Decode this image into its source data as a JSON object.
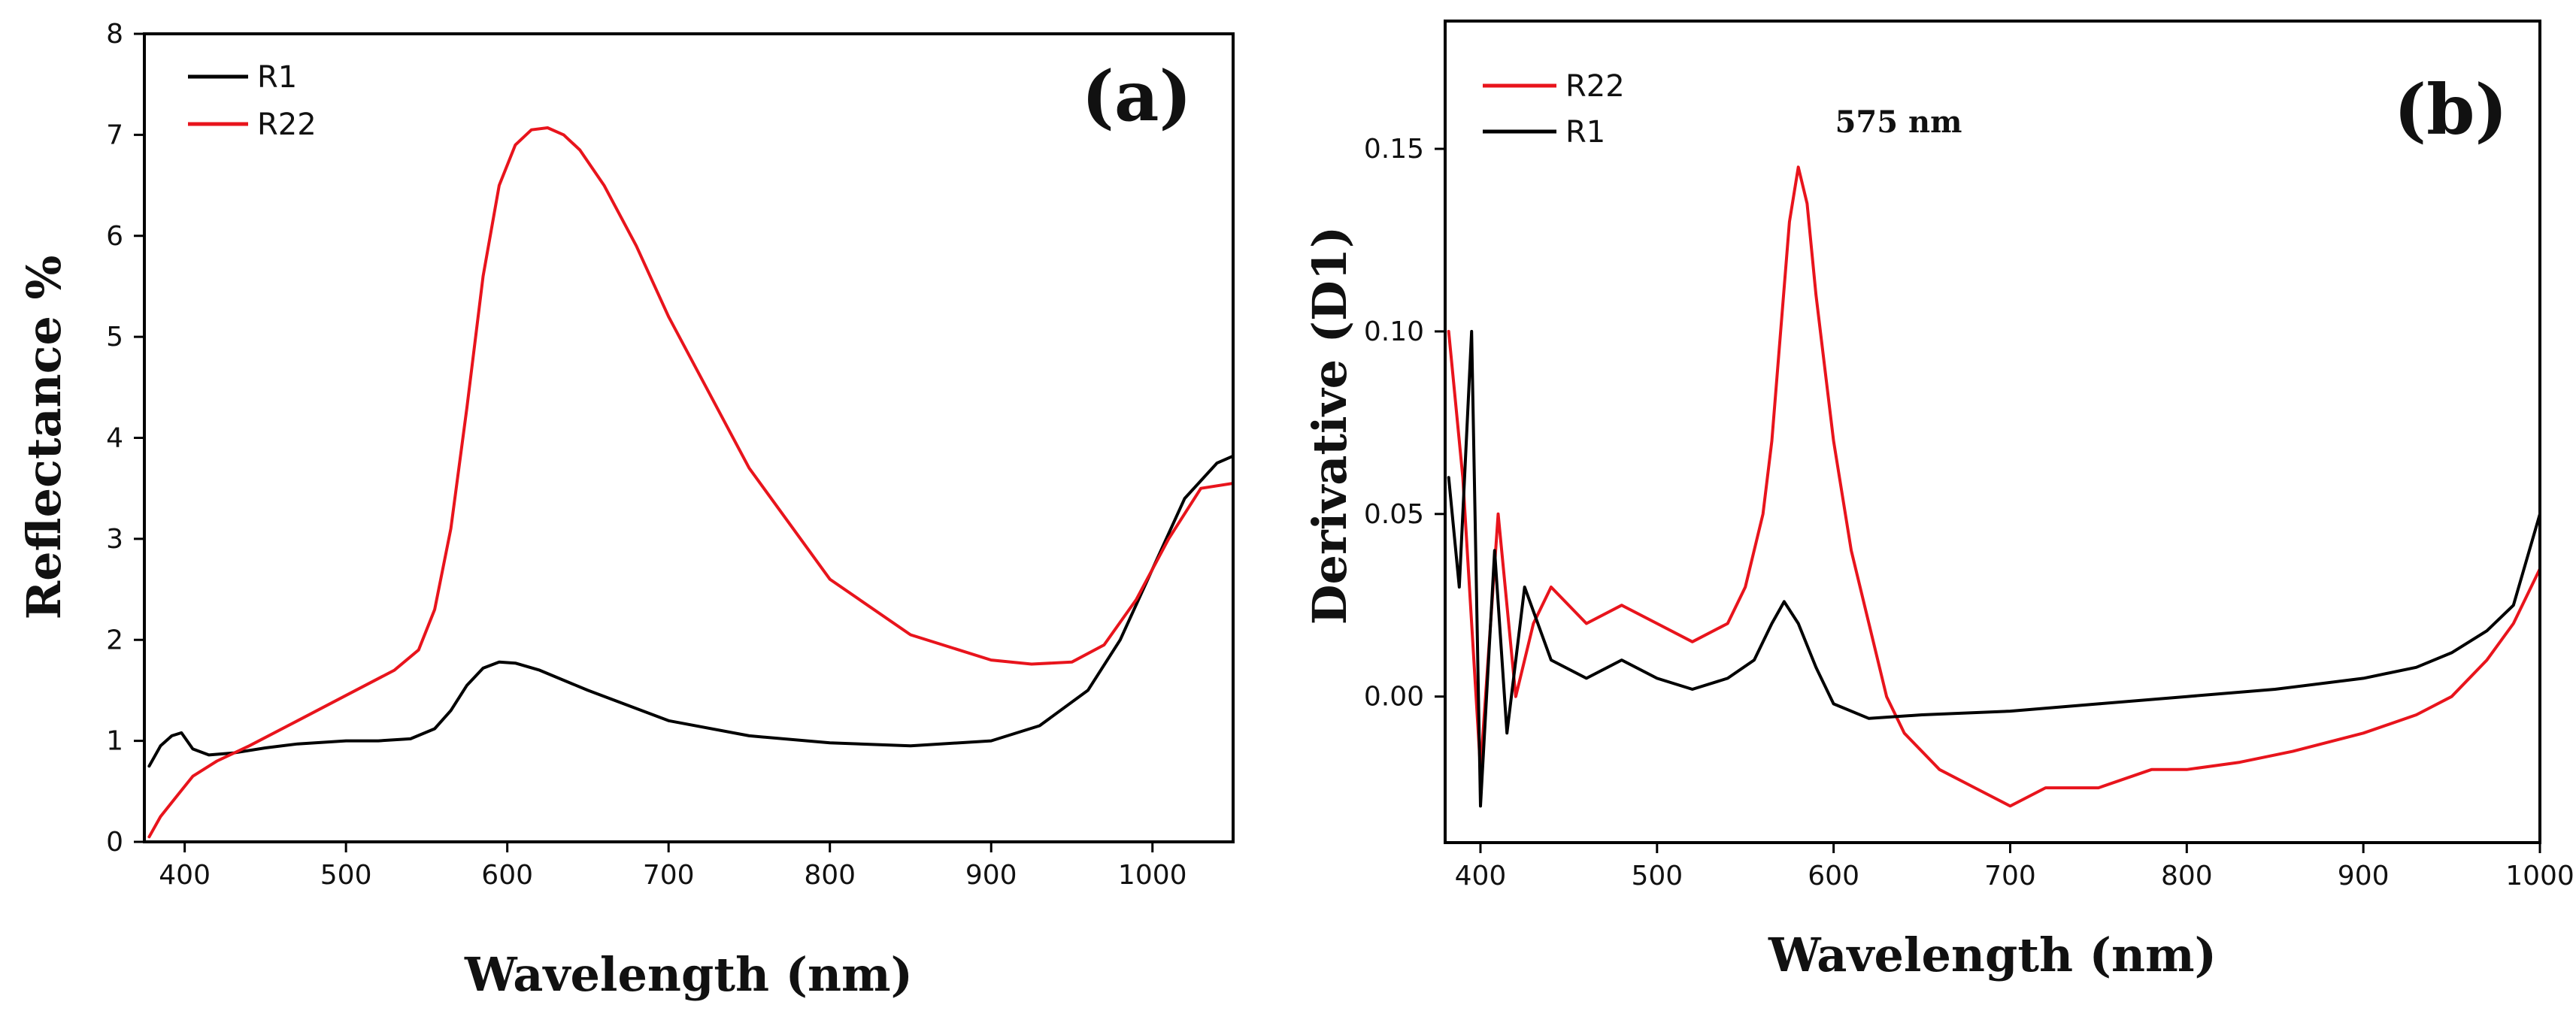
{
  "chart_data": [
    {
      "type": "line",
      "panel_label": "(a)",
      "xlabel": "Wavelength (nm)",
      "ylabel": "Reflectance %",
      "xlim": [
        375,
        1050
      ],
      "ylim": [
        0,
        8
      ],
      "xticks": [
        400,
        500,
        600,
        700,
        800,
        900,
        1000
      ],
      "yticks": [
        0,
        1,
        2,
        3,
        4,
        5,
        6,
        7,
        8
      ],
      "legend_position": "top-left",
      "grid": false,
      "series": [
        {
          "name": "R1",
          "color": "#000000",
          "x": [
            378,
            385,
            392,
            398,
            405,
            415,
            430,
            450,
            470,
            500,
            520,
            540,
            555,
            565,
            575,
            585,
            595,
            605,
            620,
            650,
            700,
            750,
            800,
            850,
            900,
            930,
            960,
            980,
            1000,
            1020,
            1040,
            1050
          ],
          "y": [
            0.75,
            0.95,
            1.05,
            1.08,
            0.92,
            0.86,
            0.88,
            0.93,
            0.97,
            1.0,
            1.0,
            1.02,
            1.12,
            1.3,
            1.55,
            1.72,
            1.78,
            1.77,
            1.7,
            1.5,
            1.2,
            1.05,
            0.98,
            0.95,
            1.0,
            1.15,
            1.5,
            2.0,
            2.7,
            3.4,
            3.75,
            3.82
          ]
        },
        {
          "name": "R22",
          "color": "#e8141c",
          "x": [
            378,
            385,
            395,
            405,
            420,
            440,
            470,
            500,
            530,
            545,
            555,
            565,
            575,
            585,
            595,
            605,
            615,
            625,
            635,
            645,
            660,
            680,
            700,
            750,
            800,
            850,
            900,
            925,
            950,
            970,
            990,
            1010,
            1030,
            1050
          ],
          "y": [
            0.05,
            0.25,
            0.45,
            0.65,
            0.8,
            0.95,
            1.2,
            1.45,
            1.7,
            1.9,
            2.3,
            3.1,
            4.3,
            5.6,
            6.5,
            6.9,
            7.05,
            7.07,
            7.0,
            6.85,
            6.5,
            5.9,
            5.2,
            3.7,
            2.6,
            2.05,
            1.8,
            1.76,
            1.78,
            1.95,
            2.4,
            3.0,
            3.5,
            3.55
          ]
        }
      ]
    },
    {
      "type": "line",
      "panel_label": "(b)",
      "xlabel": "Wavelength (nm)",
      "ylabel": "Derivative (D1)",
      "xlim": [
        380,
        1000
      ],
      "ylim": [
        -0.04,
        0.185
      ],
      "xticks": [
        400,
        500,
        600,
        700,
        800,
        900,
        1000
      ],
      "yticks": [
        0.0,
        0.05,
        0.1,
        0.15
      ],
      "ytick_labels": [
        "0.00",
        "0.05",
        "0.10",
        "0.15"
      ],
      "legend_position": "top-left",
      "grid": false,
      "annotation": {
        "text": "575 nm",
        "x": 575,
        "y": 0.15
      },
      "series": [
        {
          "name": "R22",
          "color": "#e8141c",
          "x": [
            382,
            390,
            400,
            410,
            420,
            430,
            440,
            460,
            480,
            500,
            520,
            540,
            550,
            560,
            565,
            570,
            575,
            580,
            585,
            590,
            600,
            610,
            620,
            630,
            640,
            660,
            680,
            700,
            720,
            750,
            780,
            800,
            830,
            860,
            900,
            930,
            950,
            970,
            985,
            1000
          ],
          "y": [
            0.1,
            0.06,
            -0.02,
            0.05,
            0.0,
            0.02,
            0.03,
            0.02,
            0.025,
            0.02,
            0.015,
            0.02,
            0.03,
            0.05,
            0.07,
            0.1,
            0.13,
            0.145,
            0.135,
            0.11,
            0.07,
            0.04,
            0.02,
            0.0,
            -0.01,
            -0.02,
            -0.025,
            -0.03,
            -0.025,
            -0.025,
            -0.02,
            -0.02,
            -0.018,
            -0.015,
            -0.01,
            -0.005,
            0.0,
            0.01,
            0.02,
            0.035
          ]
        },
        {
          "name": "R1",
          "color": "#000000",
          "x": [
            382,
            388,
            395,
            400,
            408,
            415,
            425,
            440,
            460,
            480,
            500,
            520,
            540,
            555,
            565,
            572,
            580,
            590,
            600,
            620,
            650,
            700,
            750,
            800,
            850,
            900,
            930,
            950,
            970,
            985,
            1000
          ],
          "y": [
            0.06,
            0.03,
            0.1,
            -0.03,
            0.04,
            -0.01,
            0.03,
            0.01,
            0.005,
            0.01,
            0.005,
            0.002,
            0.005,
            0.01,
            0.02,
            0.026,
            0.02,
            0.008,
            -0.002,
            -0.006,
            -0.005,
            -0.004,
            -0.002,
            0.0,
            0.002,
            0.005,
            0.008,
            0.012,
            0.018,
            0.025,
            0.05
          ]
        }
      ]
    }
  ]
}
